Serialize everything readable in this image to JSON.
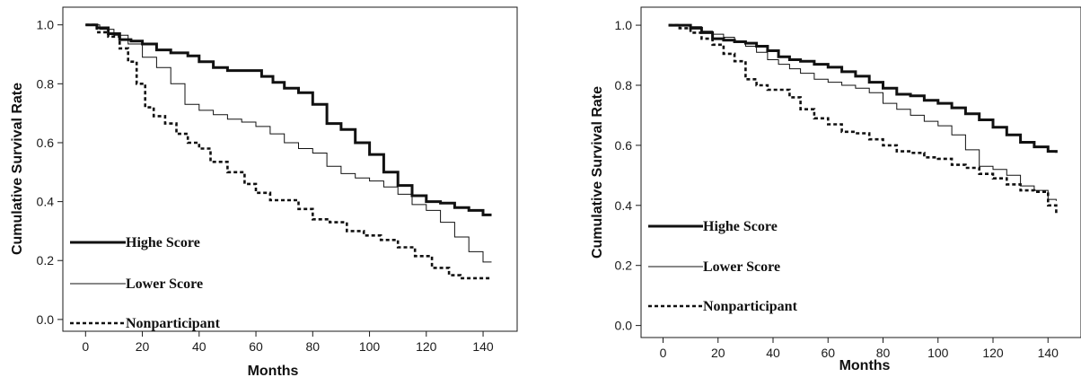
{
  "chart_data": [
    {
      "type": "line",
      "title": "",
      "xlabel": "Months",
      "ylabel": "Cumulative Survival Rate",
      "xlim": [
        -8,
        152
      ],
      "ylim": [
        -0.04,
        1.06
      ],
      "xticks": [
        0,
        20,
        40,
        60,
        80,
        100,
        120,
        140
      ],
      "yticks": [
        0.0,
        0.2,
        0.4,
        0.6,
        0.8,
        1.0
      ],
      "x_tick_labels": [
        "0",
        "20",
        "40",
        "60",
        "80",
        "100",
        "120",
        "140"
      ],
      "y_tick_labels": [
        "0.0",
        "0.2",
        "0.4",
        "0.6",
        "0.8",
        "1.0"
      ],
      "grid": false,
      "legend": "bottom-left",
      "series": [
        {
          "name": "Highe Score",
          "style": "thick-solid",
          "x": [
            0,
            4,
            8,
            12,
            16,
            20,
            25,
            30,
            36,
            40,
            45,
            50,
            56,
            62,
            66,
            70,
            75,
            80,
            85,
            90,
            95,
            100,
            105,
            110,
            115,
            120,
            125,
            130,
            135,
            140,
            143
          ],
          "y": [
            1.0,
            0.99,
            0.97,
            0.95,
            0.945,
            0.935,
            0.915,
            0.905,
            0.895,
            0.875,
            0.855,
            0.845,
            0.845,
            0.825,
            0.805,
            0.785,
            0.77,
            0.73,
            0.665,
            0.645,
            0.6,
            0.56,
            0.5,
            0.455,
            0.42,
            0.4,
            0.395,
            0.38,
            0.37,
            0.355,
            0.355
          ]
        },
        {
          "name": "Lower Score",
          "style": "thin-solid",
          "x": [
            0,
            5,
            10,
            15,
            20,
            25,
            30,
            35,
            40,
            45,
            50,
            55,
            60,
            65,
            70,
            75,
            80,
            85,
            90,
            95,
            100,
            105,
            110,
            115,
            120,
            125,
            130,
            135,
            140,
            143
          ],
          "y": [
            1.0,
            0.985,
            0.965,
            0.935,
            0.89,
            0.855,
            0.8,
            0.73,
            0.71,
            0.695,
            0.68,
            0.67,
            0.655,
            0.63,
            0.6,
            0.58,
            0.565,
            0.52,
            0.495,
            0.48,
            0.47,
            0.45,
            0.425,
            0.39,
            0.37,
            0.33,
            0.28,
            0.23,
            0.195,
            0.195
          ]
        },
        {
          "name": "Nonparticipant",
          "style": "dashed",
          "x": [
            0,
            4,
            8,
            12,
            15,
            18,
            21,
            24,
            28,
            32,
            36,
            40,
            44,
            50,
            56,
            60,
            65,
            70,
            75,
            80,
            86,
            92,
            98,
            104,
            110,
            116,
            122,
            128,
            132,
            136,
            140,
            143
          ],
          "y": [
            1.0,
            0.975,
            0.96,
            0.92,
            0.875,
            0.8,
            0.72,
            0.69,
            0.665,
            0.63,
            0.6,
            0.58,
            0.535,
            0.5,
            0.46,
            0.43,
            0.405,
            0.405,
            0.375,
            0.34,
            0.33,
            0.3,
            0.285,
            0.27,
            0.245,
            0.215,
            0.175,
            0.15,
            0.14,
            0.14,
            0.14,
            0.14
          ]
        }
      ]
    },
    {
      "type": "line",
      "title": "",
      "xlabel": "Months",
      "ylabel": "Cumulative Survival Rate",
      "xlim": [
        -8,
        152
      ],
      "ylim": [
        -0.04,
        1.06
      ],
      "xticks": [
        0,
        20,
        40,
        60,
        80,
        100,
        120,
        140
      ],
      "yticks": [
        0.0,
        0.2,
        0.4,
        0.6,
        0.8,
        1.0
      ],
      "x_tick_labels": [
        "0",
        "20",
        "40",
        "60",
        "80",
        "100",
        "120",
        "140"
      ],
      "y_tick_labels": [
        "0.0",
        "0.2",
        "0.4",
        "0.6",
        "0.8",
        "1.0"
      ],
      "grid": false,
      "legend": "bottom-left",
      "series": [
        {
          "name": "Highe Score",
          "style": "thick-solid",
          "x": [
            2,
            6,
            10,
            14,
            18,
            22,
            26,
            30,
            34,
            38,
            42,
            46,
            50,
            55,
            60,
            65,
            70,
            75,
            80,
            85,
            90,
            95,
            100,
            105,
            110,
            115,
            120,
            125,
            130,
            135,
            140,
            143
          ],
          "y": [
            1.0,
            1.0,
            0.99,
            0.975,
            0.955,
            0.95,
            0.945,
            0.94,
            0.93,
            0.915,
            0.895,
            0.885,
            0.88,
            0.87,
            0.86,
            0.845,
            0.83,
            0.81,
            0.79,
            0.77,
            0.765,
            0.75,
            0.74,
            0.725,
            0.705,
            0.685,
            0.66,
            0.635,
            0.61,
            0.595,
            0.58,
            0.575
          ]
        },
        {
          "name": "Lower Score",
          "style": "thin-solid",
          "x": [
            2,
            6,
            10,
            14,
            18,
            22,
            26,
            30,
            34,
            38,
            42,
            46,
            50,
            55,
            60,
            65,
            70,
            75,
            80,
            85,
            90,
            95,
            100,
            105,
            110,
            115,
            120,
            125,
            130,
            135,
            140,
            143
          ],
          "y": [
            1.0,
            1.0,
            0.995,
            0.98,
            0.97,
            0.96,
            0.945,
            0.93,
            0.91,
            0.885,
            0.87,
            0.855,
            0.84,
            0.82,
            0.81,
            0.8,
            0.79,
            0.775,
            0.74,
            0.72,
            0.7,
            0.68,
            0.665,
            0.635,
            0.585,
            0.53,
            0.52,
            0.5,
            0.465,
            0.45,
            0.42,
            0.415
          ]
        },
        {
          "name": "Nonparticipant",
          "style": "dashed",
          "x": [
            2,
            6,
            10,
            14,
            18,
            22,
            26,
            30,
            34,
            38,
            42,
            46,
            50,
            55,
            60,
            65,
            70,
            75,
            80,
            85,
            90,
            95,
            100,
            105,
            110,
            115,
            120,
            125,
            130,
            135,
            140,
            143
          ],
          "y": [
            1.0,
            0.99,
            0.975,
            0.955,
            0.935,
            0.905,
            0.88,
            0.82,
            0.8,
            0.785,
            0.785,
            0.76,
            0.72,
            0.69,
            0.67,
            0.645,
            0.64,
            0.62,
            0.6,
            0.58,
            0.575,
            0.56,
            0.555,
            0.535,
            0.525,
            0.505,
            0.49,
            0.47,
            0.45,
            0.445,
            0.4,
            0.37
          ]
        }
      ]
    }
  ]
}
